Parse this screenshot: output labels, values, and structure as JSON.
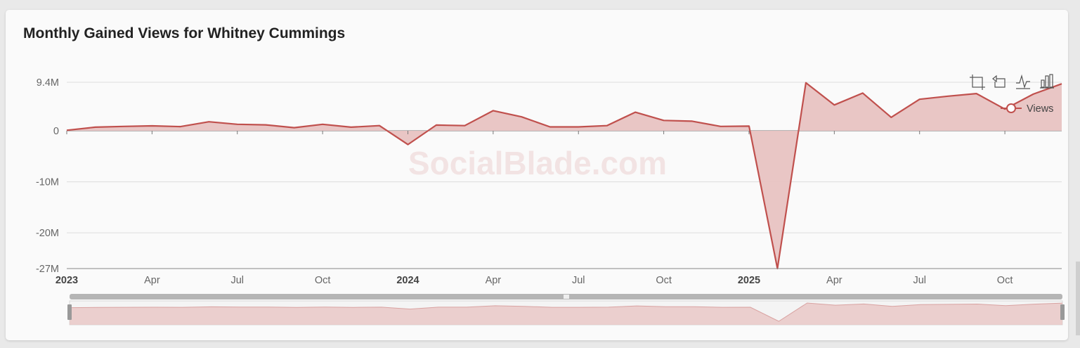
{
  "page": {
    "title": "Monthly Gained Views for Whitney Cummings",
    "watermark": "SocialBlade.com"
  },
  "legend": {
    "label": "Views"
  },
  "toolbox": {
    "icons": [
      "zoom-icon",
      "zoom-reset-icon",
      "line-chart-icon",
      "bar-chart-icon"
    ]
  },
  "colors": {
    "series": "#c0504d",
    "area": "#e8c3c2",
    "grid": "#dddddd"
  },
  "chart_data": {
    "type": "area",
    "title": "Monthly Gained Views for Whitney Cummings",
    "xlabel": "",
    "ylabel": "",
    "yticks": [
      "9.4M",
      "0",
      "-10M",
      "-20M",
      "-27M"
    ],
    "ytick_values": [
      9400000,
      0,
      -10000000,
      -20000000,
      -27000000
    ],
    "ylim": [
      -27000000,
      9400000
    ],
    "xticks": [
      {
        "label": "2023",
        "index": 0,
        "bold": true
      },
      {
        "label": "Apr",
        "index": 3,
        "bold": false
      },
      {
        "label": "Jul",
        "index": 6,
        "bold": false
      },
      {
        "label": "Oct",
        "index": 9,
        "bold": false
      },
      {
        "label": "2024",
        "index": 12,
        "bold": true
      },
      {
        "label": "Apr",
        "index": 15,
        "bold": false
      },
      {
        "label": "Jul",
        "index": 18,
        "bold": false
      },
      {
        "label": "Oct",
        "index": 21,
        "bold": false
      },
      {
        "label": "2025",
        "index": 24,
        "bold": true
      },
      {
        "label": "Apr",
        "index": 27,
        "bold": false
      },
      {
        "label": "Jul",
        "index": 30,
        "bold": false
      },
      {
        "label": "Oct",
        "index": 33,
        "bold": false
      }
    ],
    "x": [
      "2023-01",
      "2023-02",
      "2023-03",
      "2023-04",
      "2023-05",
      "2023-06",
      "2023-07",
      "2023-08",
      "2023-09",
      "2023-10",
      "2023-11",
      "2023-12",
      "2024-01",
      "2024-02",
      "2024-03",
      "2024-04",
      "2024-05",
      "2024-06",
      "2024-07",
      "2024-08",
      "2024-09",
      "2024-10",
      "2024-11",
      "2024-12",
      "2025-01",
      "2025-02",
      "2025-03",
      "2025-04",
      "2025-05",
      "2025-06",
      "2025-07",
      "2025-08",
      "2025-09",
      "2025-10",
      "2025-11",
      "2025-12"
    ],
    "series": [
      {
        "name": "Views",
        "values": [
          100000,
          700000,
          850000,
          950000,
          800000,
          1750000,
          1250000,
          1150000,
          600000,
          1250000,
          700000,
          1000000,
          -2700000,
          1100000,
          1000000,
          3900000,
          2700000,
          750000,
          750000,
          1000000,
          3600000,
          2000000,
          1850000,
          850000,
          900000,
          -27000000,
          9300000,
          5000000,
          7300000,
          2600000,
          6100000,
          6700000,
          7200000,
          4200000,
          7100000,
          9100000
        ]
      }
    ],
    "legend_position": "top-right",
    "grid": true,
    "has_data_zoom": true
  }
}
